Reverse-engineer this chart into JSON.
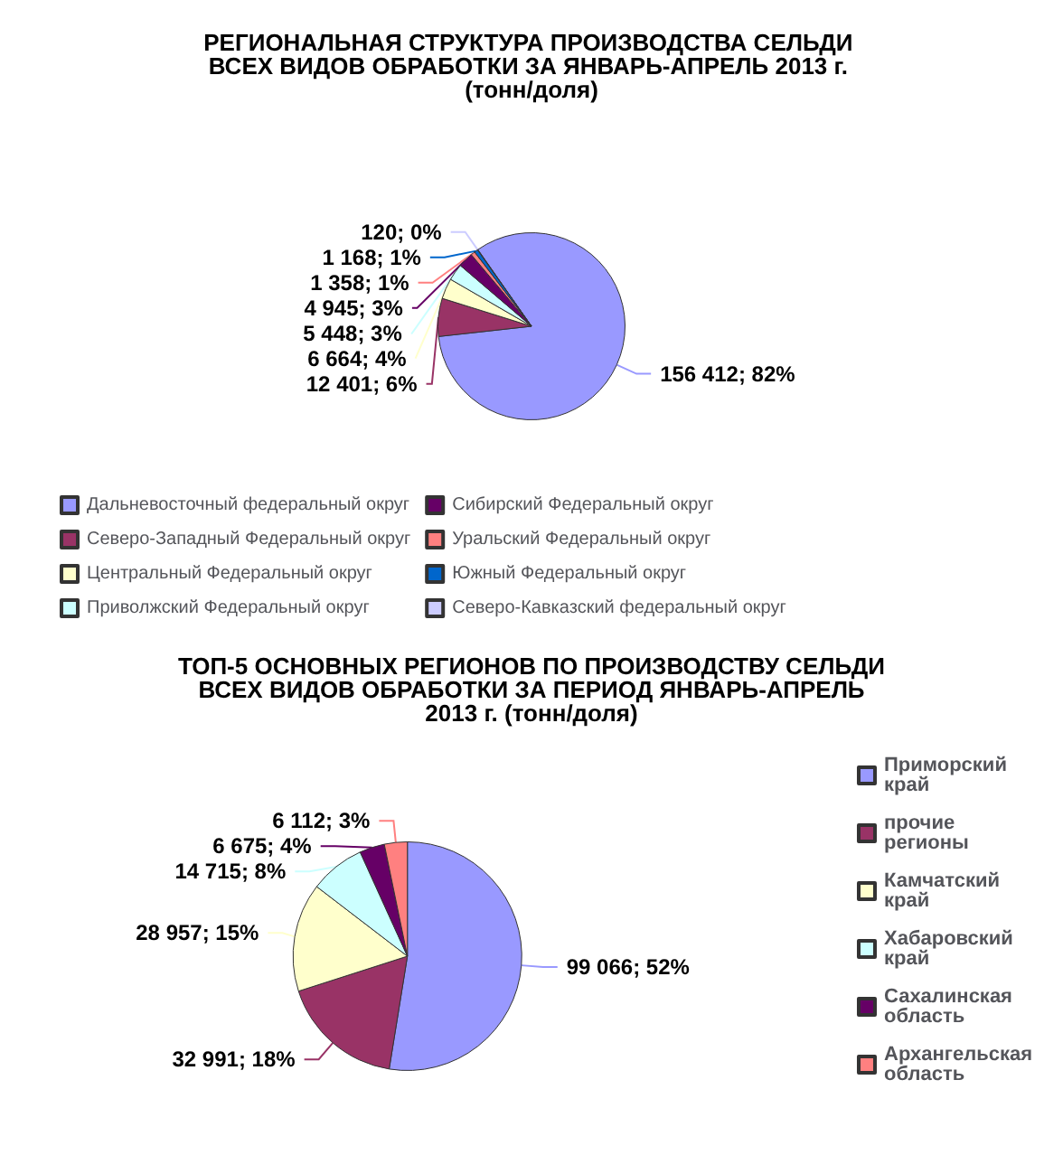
{
  "chart_data": [
    {
      "type": "pie",
      "title": "РЕГИОНАЛЬНАЯ СТРУКТУРА ПРОИЗВОДСТВА СЕЛЬДИ ВСЕХ ВИДОВ ОБРАБОТКИ ЗА ЯНВАРЬ-АПРЕЛЬ 2013 г. (тонн/доля)",
      "categories": [
        "Дальневосточный федеральный округ",
        "Северо-Западный Федеральный округ",
        "Центральный Федеральный округ",
        "Приволжский Федеральный округ",
        "Сибирский Федеральный округ",
        "Уральский Федеральный округ",
        "Южный Федеральный округ",
        "Северо-Кавказский федеральный округ"
      ],
      "values": [
        156412,
        12401,
        6664,
        5448,
        4945,
        1358,
        1168,
        120
      ],
      "value_labels": [
        "156 412; 82%",
        "12 401; 6%",
        "6 664; 4%",
        "5 448; 3%",
        "4 945; 3%",
        "1 358; 1%",
        "1 168; 1%",
        "120; 0%"
      ],
      "colors": [
        "#9999ff",
        "#993366",
        "#ffffcc",
        "#ccffff",
        "#660066",
        "#ff8080",
        "#0066cc",
        "#ccccff"
      ],
      "legend": "bottom"
    },
    {
      "type": "pie",
      "title": "ТОП-5 ОСНОВНЫХ РЕГИОНОВ ПО ПРОИЗВОДСТВУ СЕЛЬДИ ВСЕХ ВИДОВ ОБРАБОТКИ ЗА ПЕРИОД ЯНВАРЬ-АПРЕЛЬ 2013 г. (тонн/доля)",
      "categories": [
        "Приморский край",
        "прочие регионы",
        "Камчатский край",
        "Хабаровский край",
        "Сахалинская область",
        "Архангельская область"
      ],
      "values": [
        99066,
        32991,
        28957,
        14715,
        6675,
        6112
      ],
      "value_labels": [
        "99 066; 52%",
        "32 991; 18%",
        "28 957; 15%",
        "14 715; 8%",
        "6 675; 4%",
        "6 112; 3%"
      ],
      "colors": [
        "#9999ff",
        "#993366",
        "#ffffcc",
        "#ccffff",
        "#660066",
        "#ff8080"
      ],
      "legend": "right"
    }
  ]
}
